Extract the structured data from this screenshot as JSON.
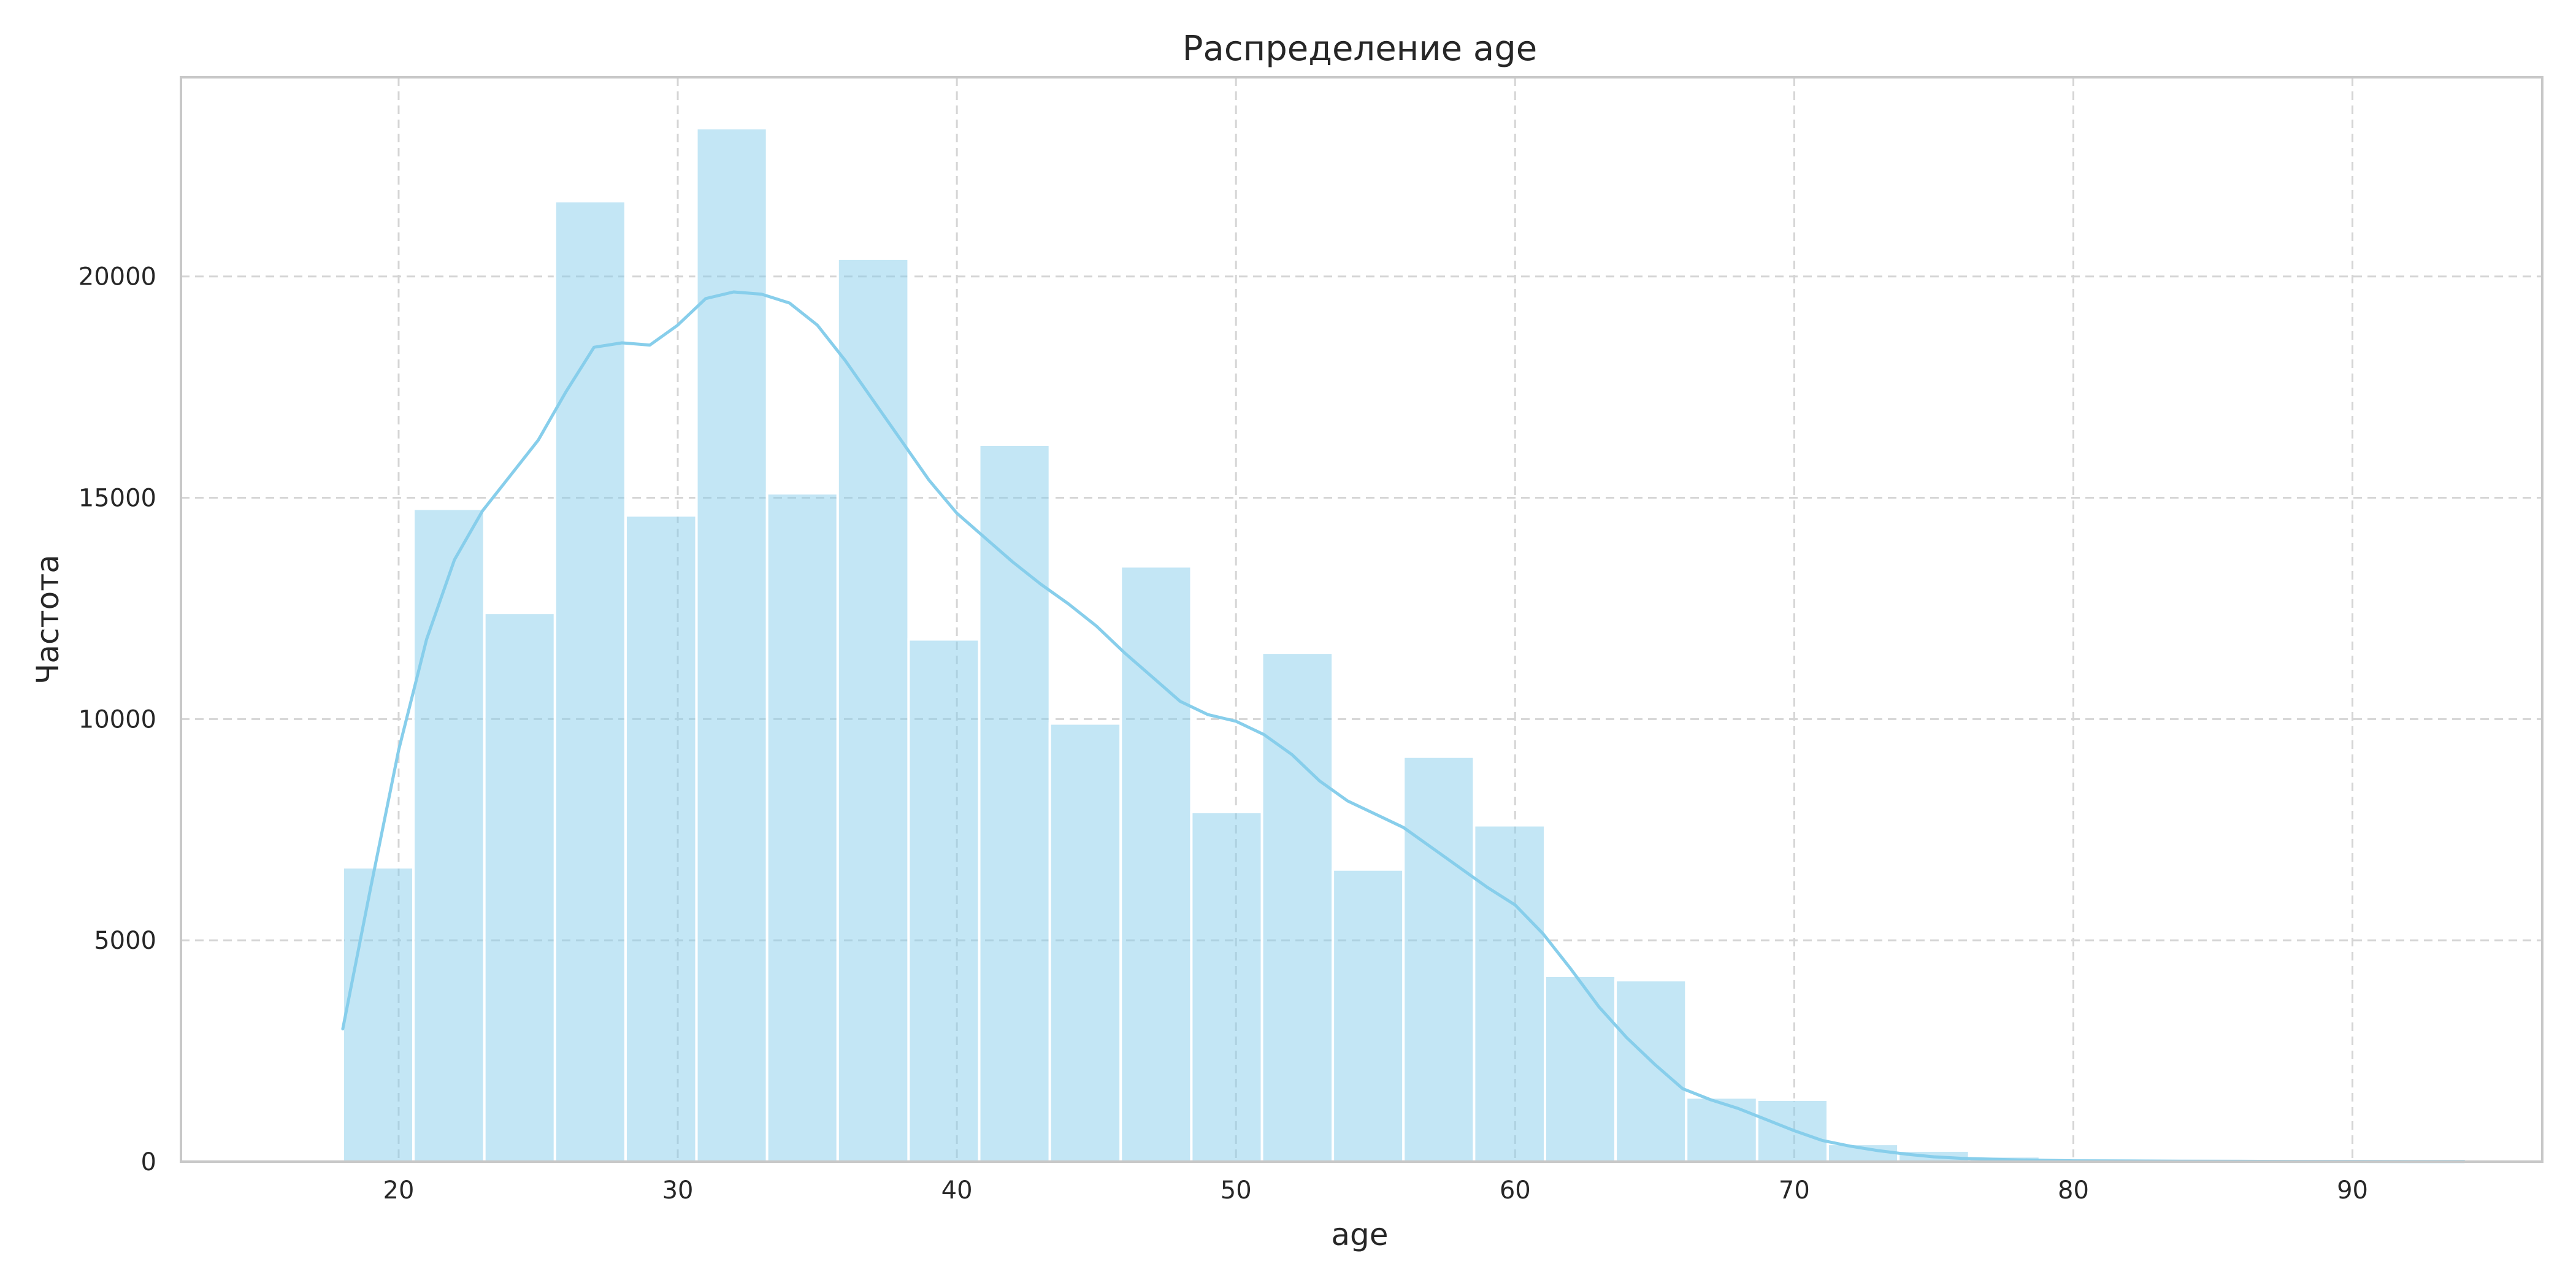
{
  "chart_data": {
    "type": "bar",
    "title": "Распределение age",
    "xlabel": "age",
    "ylabel": "Частота",
    "xlim": [
      12.2,
      96.8
    ],
    "ylim": [
      0,
      24500
    ],
    "xticks": [
      20,
      30,
      40,
      50,
      60,
      70,
      80,
      90
    ],
    "yticks": [
      0,
      5000,
      10000,
      15000,
      20000
    ],
    "grid": true,
    "bar_color": "#87ceeb",
    "bar_opacity": 0.5,
    "line_color": "#87ceeb",
    "bins": [
      {
        "x0": 18.0,
        "x1": 20.53,
        "count": 6650
      },
      {
        "x0": 20.53,
        "x1": 23.07,
        "count": 14750
      },
      {
        "x0": 23.07,
        "x1": 25.6,
        "count": 12400
      },
      {
        "x0": 25.6,
        "x1": 28.13,
        "count": 21700
      },
      {
        "x0": 28.13,
        "x1": 30.67,
        "count": 14600
      },
      {
        "x0": 30.67,
        "x1": 33.2,
        "count": 23350
      },
      {
        "x0": 33.2,
        "x1": 35.73,
        "count": 15100
      },
      {
        "x0": 35.73,
        "x1": 38.27,
        "count": 20400
      },
      {
        "x0": 38.27,
        "x1": 40.8,
        "count": 11800
      },
      {
        "x0": 40.8,
        "x1": 43.33,
        "count": 16200
      },
      {
        "x0": 43.33,
        "x1": 45.87,
        "count": 9900
      },
      {
        "x0": 45.87,
        "x1": 48.4,
        "count": 13450
      },
      {
        "x0": 48.4,
        "x1": 50.93,
        "count": 7900
      },
      {
        "x0": 50.93,
        "x1": 53.47,
        "count": 11500
      },
      {
        "x0": 53.47,
        "x1": 56.0,
        "count": 6600
      },
      {
        "x0": 56.0,
        "x1": 58.53,
        "count": 9150
      },
      {
        "x0": 58.53,
        "x1": 61.07,
        "count": 7600
      },
      {
        "x0": 61.07,
        "x1": 63.6,
        "count": 4200
      },
      {
        "x0": 63.6,
        "x1": 66.13,
        "count": 4100
      },
      {
        "x0": 66.13,
        "x1": 68.67,
        "count": 1450
      },
      {
        "x0": 68.67,
        "x1": 71.2,
        "count": 1400
      },
      {
        "x0": 71.2,
        "x1": 73.73,
        "count": 400
      },
      {
        "x0": 73.73,
        "x1": 76.27,
        "count": 250
      },
      {
        "x0": 76.27,
        "x1": 78.8,
        "count": 120
      },
      {
        "x0": 78.8,
        "x1": 81.33,
        "count": 70
      },
      {
        "x0": 81.33,
        "x1": 83.87,
        "count": 40
      },
      {
        "x0": 83.87,
        "x1": 86.4,
        "count": 30
      },
      {
        "x0": 86.4,
        "x1": 88.93,
        "count": 20
      },
      {
        "x0": 88.93,
        "x1": 91.47,
        "count": 15
      },
      {
        "x0": 91.47,
        "x1": 94.0,
        "count": 10
      }
    ],
    "kde": {
      "x": [
        18,
        19,
        20,
        21,
        22,
        23,
        24,
        25,
        26,
        27,
        28,
        29,
        30,
        31,
        32,
        33,
        34,
        35,
        36,
        37,
        38,
        39,
        40,
        41,
        42,
        43,
        44,
        45,
        46,
        47,
        48,
        49,
        50,
        51,
        52,
        53,
        54,
        55,
        56,
        57,
        58,
        59,
        60,
        61,
        62,
        63,
        64,
        65,
        66,
        67,
        68,
        69,
        70,
        71,
        72,
        73,
        74,
        75,
        76,
        78,
        80,
        82,
        84,
        86,
        88,
        90,
        92,
        94
      ],
      "y": [
        3000,
        6200,
        9300,
        11800,
        13600,
        14700,
        15500,
        16300,
        17400,
        18400,
        18500,
        18450,
        18900,
        19500,
        19650,
        19600,
        19400,
        18900,
        18100,
        17200,
        16300,
        15400,
        14650,
        14100,
        13550,
        13050,
        12600,
        12100,
        11500,
        10950,
        10400,
        10100,
        9950,
        9650,
        9200,
        8600,
        8150,
        7850,
        7550,
        7100,
        6650,
        6200,
        5800,
        5150,
        4350,
        3500,
        2800,
        2200,
        1650,
        1400,
        1200,
        950,
        700,
        480,
        350,
        250,
        170,
        110,
        75,
        40,
        20,
        15,
        10,
        8,
        6,
        5,
        4,
        3
      ]
    }
  }
}
